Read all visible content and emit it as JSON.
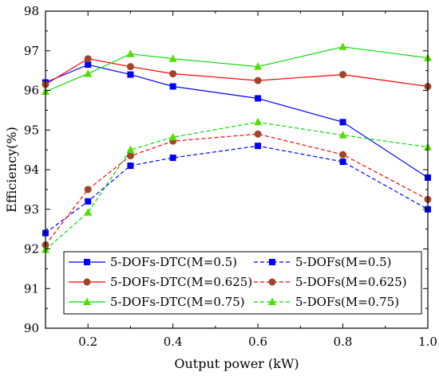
{
  "chart_data": {
    "type": "line",
    "title": "",
    "xlabel": "Output power (kW)",
    "ylabel": "Efficiency(%)",
    "xlim": [
      0.1,
      1.0
    ],
    "ylim": [
      90,
      98
    ],
    "x_ticks": [
      0.2,
      0.4,
      0.6,
      0.8,
      1.0
    ],
    "x_tick_labels": [
      "0.2",
      "0.4",
      "0.6",
      "0.8",
      "1.0"
    ],
    "y_ticks": [
      90,
      91,
      92,
      93,
      94,
      95,
      96,
      97,
      98
    ],
    "y_tick_labels": [
      "90",
      "91",
      "92",
      "93",
      "94",
      "95",
      "96",
      "97",
      "98"
    ],
    "x": [
      0.1,
      0.2,
      0.3,
      0.4,
      0.6,
      0.8,
      1.0
    ],
    "grid": false,
    "legend_position": "bottom",
    "series": [
      {
        "name": "5-DOFs-DTC(M=0.5)",
        "values": [
          96.2,
          96.65,
          96.4,
          96.1,
          95.8,
          95.2,
          93.8
        ],
        "color": "#0000ff",
        "marker": "square",
        "dash": false
      },
      {
        "name": "5-DOFs(M=0.5)",
        "values": [
          92.4,
          93.2,
          94.1,
          94.3,
          94.6,
          94.2,
          93.0
        ],
        "color": "#0000ff",
        "marker": "square",
        "dash": true
      },
      {
        "name": "5-DOFs-DTC(M=0.625)",
        "values": [
          96.15,
          96.8,
          96.6,
          96.42,
          96.25,
          96.4,
          96.1
        ],
        "color": "#ff0000",
        "marker": "circle",
        "dash": false
      },
      {
        "name": "5-DOFs(M=0.625)",
        "values": [
          92.1,
          93.5,
          94.35,
          94.72,
          94.9,
          94.38,
          93.25
        ],
        "color": "#ff0000",
        "marker": "circle",
        "dash": true
      },
      {
        "name": "5-DOFs-DTC(M=0.75)",
        "values": [
          95.97,
          96.42,
          96.92,
          96.8,
          96.6,
          97.1,
          96.82
        ],
        "color": "#00dd00",
        "marker": "triangle",
        "dash": false
      },
      {
        "name": "5-DOFs(M=0.75)",
        "values": [
          91.98,
          92.92,
          94.5,
          94.82,
          95.2,
          94.87,
          94.57
        ],
        "color": "#00dd00",
        "marker": "triangle",
        "dash": true
      }
    ]
  }
}
